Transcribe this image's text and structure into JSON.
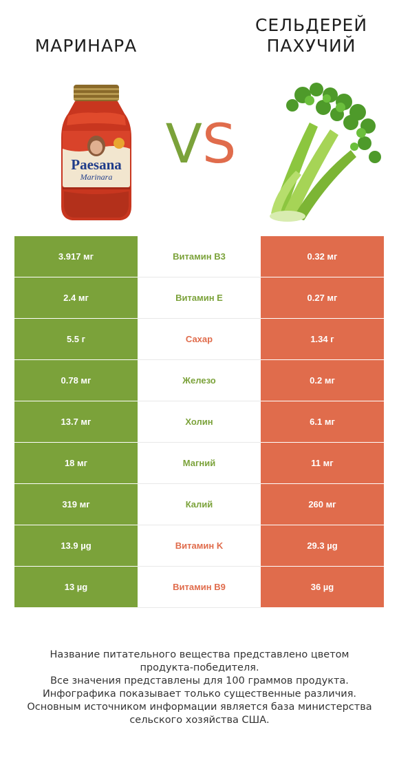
{
  "header": {
    "left_title": "МАРИНАРА",
    "right_title_line1": "СЕЛЬДЕРЕЙ",
    "right_title_line2": "ПАХУЧИЙ",
    "vs_v": "V",
    "vs_s": "S"
  },
  "jar_label": {
    "brand": "Paesana",
    "variety": "Marinara"
  },
  "colors": {
    "left_winner": "#7ba23a",
    "right_winner": "#e06c4c"
  },
  "rows": [
    {
      "nutrient": "Витамин B3",
      "left": "3.917 мг",
      "right": "0.32 мг",
      "winner": "left"
    },
    {
      "nutrient": "Витамин E",
      "left": "2.4 мг",
      "right": "0.27 мг",
      "winner": "left"
    },
    {
      "nutrient": "Сахар",
      "left": "5.5 г",
      "right": "1.34 г",
      "winner": "right"
    },
    {
      "nutrient": "Железо",
      "left": "0.78 мг",
      "right": "0.2 мг",
      "winner": "left"
    },
    {
      "nutrient": "Холин",
      "left": "13.7 мг",
      "right": "6.1 мг",
      "winner": "left"
    },
    {
      "nutrient": "Магний",
      "left": "18 мг",
      "right": "11 мг",
      "winner": "left"
    },
    {
      "nutrient": "Калий",
      "left": "319 мг",
      "right": "260 мг",
      "winner": "left"
    },
    {
      "nutrient": "Витамин K",
      "left": "13.9 µg",
      "right": "29.3 µg",
      "winner": "right"
    },
    {
      "nutrient": "Витамин B9",
      "left": "13 µg",
      "right": "36 µg",
      "winner": "right"
    }
  ],
  "footer": {
    "line1": "Название питательного вещества представлено цветом",
    "line2": "продукта-победителя.",
    "line3": "Все значения представлены для 100 граммов продукта.",
    "line4": "Инфографика показывает только существенные различия.",
    "line5": "Основным источником информации является база министерства",
    "line6": "сельского хозяйства США."
  }
}
